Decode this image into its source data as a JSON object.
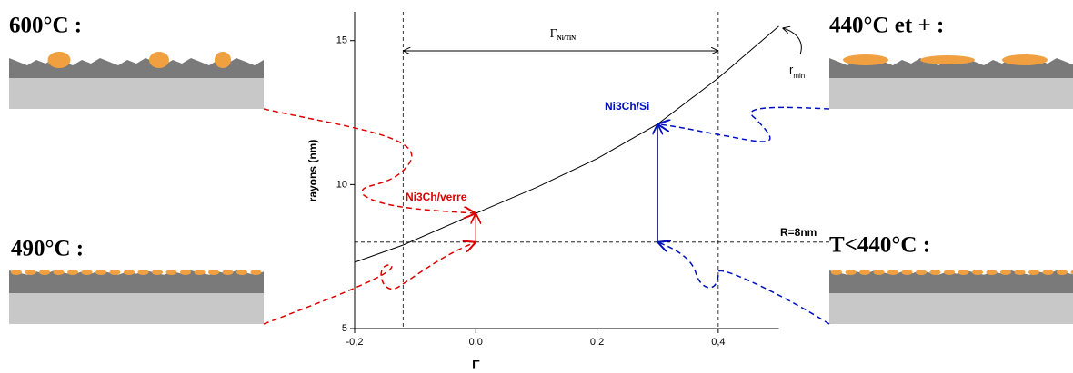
{
  "chart_data": {
    "type": "line",
    "x_label": "Γ",
    "y_label": "rayons (nm)",
    "x": [
      -0.2,
      -0.12,
      0.0,
      0.1,
      0.2,
      0.3,
      0.4,
      0.5
    ],
    "series": [
      {
        "color": "#000000",
        "values": [
          7.3,
          7.9,
          9.0,
          9.9,
          10.9,
          12.1,
          13.7,
          15.5
        ]
      }
    ],
    "xlim": [
      -0.2,
      0.5
    ],
    "ylim": [
      5,
      16
    ],
    "xticks": [
      {
        "value": -0.2,
        "label": "-0,2"
      },
      {
        "value": 0.0,
        "label": "0,0"
      },
      {
        "value": 0.2,
        "label": "0,2"
      },
      {
        "value": 0.4,
        "label": "0,4"
      }
    ],
    "yticks": [
      5,
      10,
      15
    ],
    "vlines": [
      -0.12,
      0.4
    ],
    "hline": {
      "value": 8,
      "label": "R=8nm"
    },
    "span_label": {
      "text": "Γ",
      "subscript": "Ni/TiN"
    },
    "curve_label": {
      "text": "r",
      "subscript": "min"
    },
    "arrows": [
      {
        "label": "Ni3Ch/verre",
        "color": "#dd0000",
        "x": 0.0,
        "from": 8,
        "to": 9.0
      },
      {
        "label": "Ni3Ch/Si",
        "color": "#0010c0",
        "x": 0.3,
        "from": 8,
        "to": 12.1
      }
    ]
  },
  "panels": [
    {
      "label": "600°C :"
    },
    {
      "label": "490°C :"
    },
    {
      "label": "440°C et + :"
    },
    {
      "label": "T<440°C :"
    }
  ]
}
